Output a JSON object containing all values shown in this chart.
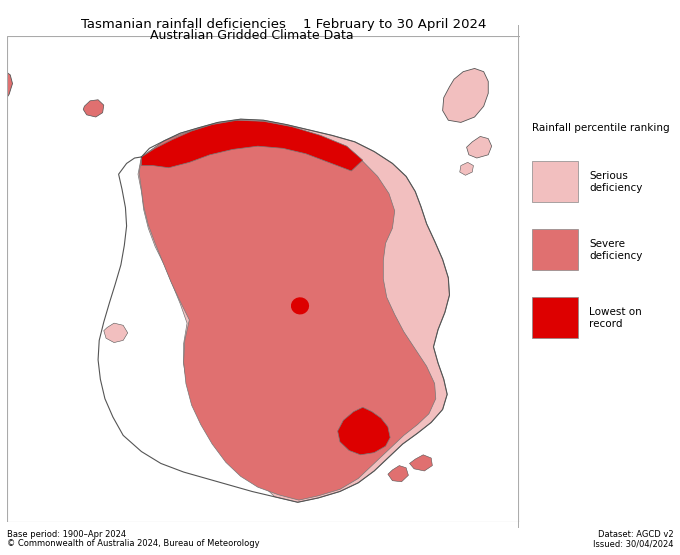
{
  "title_line1": "Tasmanian rainfall deficiencies",
  "title_date": "1 February to 30 April 2024",
  "title_line2": "Australian Gridded Climate Data",
  "footer_left1": "Base period: 1900–Apr 2024",
  "footer_left2": "© Commonwealth of Australia 2024, Bureau of Meteorology",
  "footer_right1": "Dataset: AGCD v2",
  "footer_right2": "Issued: 30/04/2024",
  "legend_title": "Rainfall percentile ranking",
  "legend_items": [
    {
      "label": "Serious\ndeficiency",
      "color": "#f2bfbf"
    },
    {
      "label": "Severe\ndeficiency",
      "color": "#e07070"
    },
    {
      "label": "Lowest on\nrecord",
      "color": "#dd0000"
    }
  ],
  "colors": {
    "serious": "#f2bfbf",
    "severe": "#e07070",
    "lowest": "#dd0000",
    "outline": "#555555",
    "background": "#ffffff"
  },
  "lon_min": 144.0,
  "lon_max": 148.5,
  "lat_min": -43.9,
  "lat_max": -39.4
}
